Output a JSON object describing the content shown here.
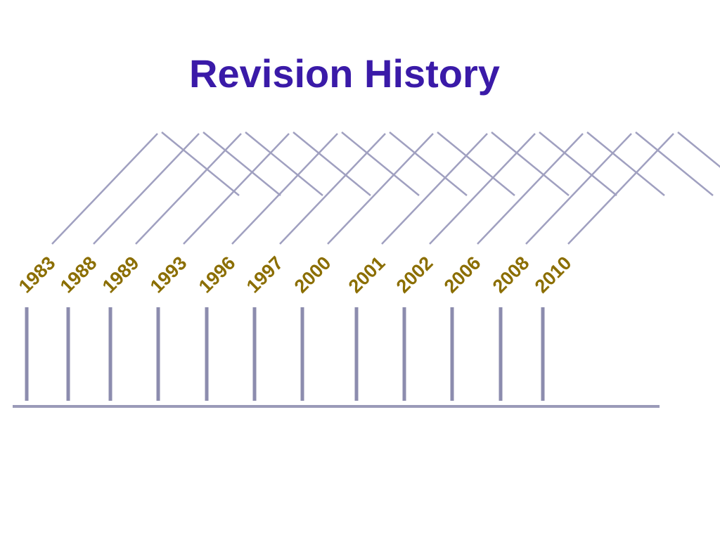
{
  "title": "Revision History",
  "years": [
    "1983",
    "1988",
    "1989",
    "1993",
    "1996",
    "1997",
    "2000",
    "2001",
    "2002",
    "2006",
    "2008",
    "2010"
  ]
}
